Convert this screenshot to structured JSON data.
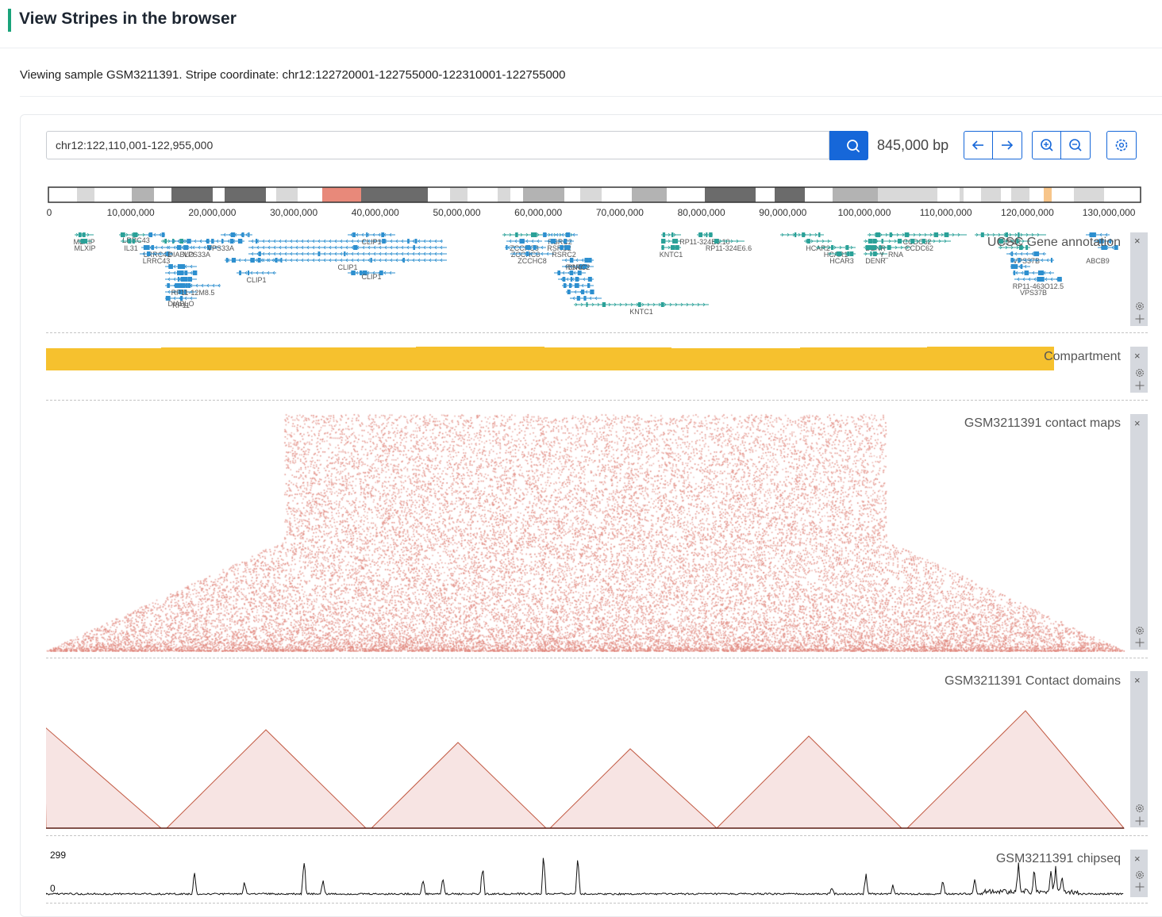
{
  "header": {
    "title": "View Stripes in the browser"
  },
  "subtitle": "Viewing sample GSM3211391. Stripe coordinate: chr12:122720001-122755000-122310001-122755000",
  "toolbar": {
    "location": "chr12:122,110,001-122,955,000",
    "span_label": "845,000 bp",
    "icons": [
      "search-icon",
      "arrow-left-icon",
      "arrow-right-icon",
      "zoom-in-icon",
      "zoom-out-icon",
      "gear-icon"
    ]
  },
  "ideogram": {
    "tick_labels": [
      "0",
      "10,000,000",
      "20,000,000",
      "30,000,000",
      "40,000,000",
      "50,000,000",
      "60,000,000",
      "70,000,000",
      "80,000,000",
      "90,000,000",
      "100,000,000",
      "110,000,000",
      "120,000,000",
      "130,000,000"
    ],
    "band_colors": {
      "gneg": "#ffffff",
      "gpos25": "#d9d9d9",
      "gpos50": "#b3b3b3",
      "gpos75": "#6b6b6b",
      "acen": "#e8897a",
      "highlight": "#f7c58a"
    }
  },
  "tracks": {
    "genes": {
      "title": "UCSC Gene annotation",
      "labels": [
        "MLXIP",
        "MLXIP",
        "LRRC43",
        "IL31",
        "LRRC43",
        "LRRC43",
        "DIABLO",
        "VPS33A",
        "VPS33A",
        "CLIP1",
        "CLIP1",
        "CLIP1",
        "CLIP1",
        "RP11",
        "DIABLO",
        "RP11-12M8.5",
        "ZCCHC8",
        "ZCCHC8",
        "ZCCHC8",
        "RSRC2",
        "RSRC2",
        "RSRC2",
        "SNCR",
        "RSRC2",
        "KNTC1",
        "KNTC1",
        "RP11-324E6.10",
        "RP11-324E6.6",
        "HCAR2",
        "HCAR1",
        "HCAR3",
        "DENR",
        "DENR",
        "Y_RNA",
        "CCDC62",
        "CCDC62",
        "HIP1R",
        "VPS37B",
        "VPS37B",
        "RP11-463O12.5",
        "ABCB9"
      ],
      "colors": {
        "plus": "#2aa198",
        "minus": "#2d8fcf"
      }
    },
    "compartment": {
      "title": "Compartment",
      "color": "#f6c12e"
    },
    "contact_map": {
      "title": "GSM3211391 contact maps",
      "color": "#e0867c"
    },
    "contact_domains": {
      "title": "GSM3211391 Contact domains",
      "fill": "#f7e4e3",
      "stroke": "#c25a43"
    },
    "chipseq": {
      "title": "GSM3211391 chipseq",
      "y_max_label": "299",
      "y_min_label": "0",
      "color": "#111111"
    }
  }
}
